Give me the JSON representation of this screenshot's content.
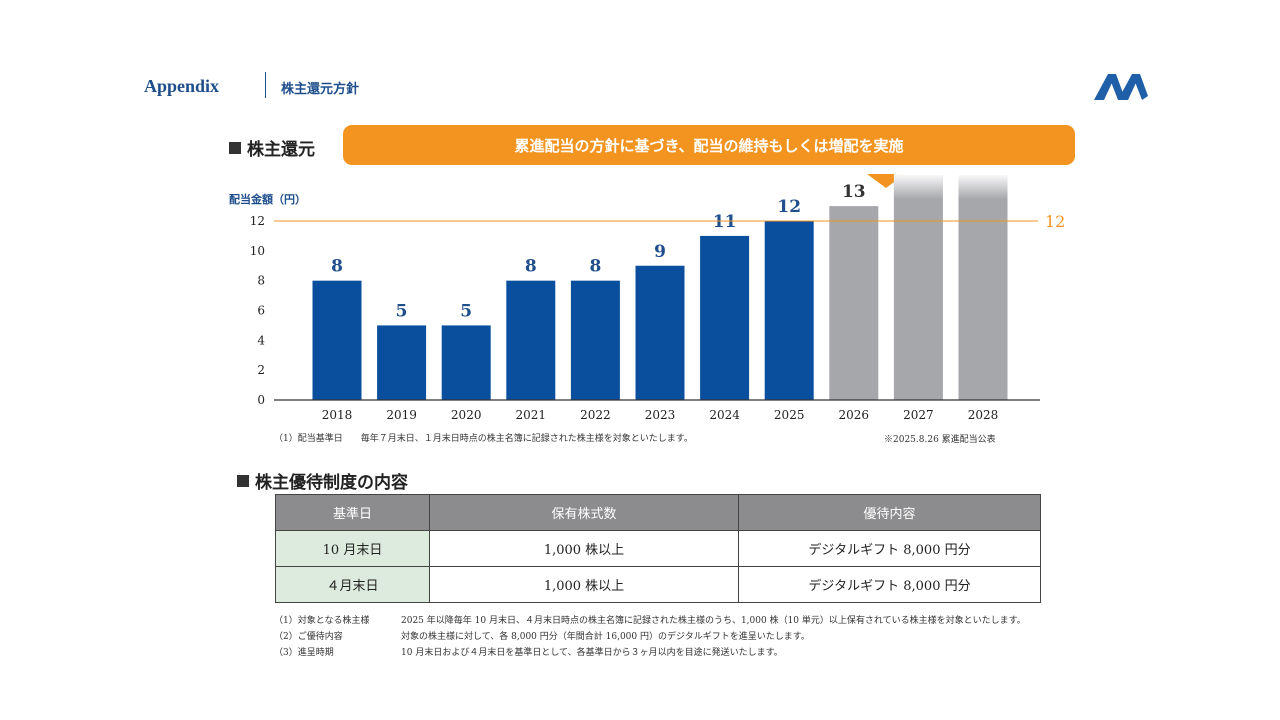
{
  "header": {
    "appendix": "Appendix",
    "subtitle": "株主還元方針"
  },
  "dividend_section": {
    "title": "株主還元",
    "banner": "累進配当の方針に基づき、配当の維持もしくは増配を実施"
  },
  "chart_data": {
    "type": "bar",
    "ylabel": "配当金額（円）",
    "categories": [
      "2018",
      "2019",
      "2020",
      "2021",
      "2022",
      "2023",
      "2024",
      "2025",
      "2026",
      "2027",
      "2028"
    ],
    "values": [
      8,
      5,
      5,
      8,
      8,
      9,
      11,
      12,
      13,
      null,
      null
    ],
    "value_labels": [
      "8",
      "5",
      "5",
      "8",
      "8",
      "9",
      "11",
      "12",
      "13",
      "",
      ""
    ],
    "bar_types": [
      "actual",
      "actual",
      "actual",
      "actual",
      "actual",
      "actual",
      "actual",
      "actual",
      "forecast",
      "future",
      "future"
    ],
    "yticks": [
      0,
      2,
      4,
      6,
      8,
      10,
      12
    ],
    "ylim": [
      0,
      12
    ],
    "reference_line": {
      "value": 12,
      "label": "12"
    },
    "colors": {
      "actual": "#0a4f9e",
      "forecast": "#a6a7ab",
      "reference": "#f39420",
      "value_label": "#1f4e8c"
    }
  },
  "chart_notes": {
    "left": "（1）配当基準日　　毎年７月末日、１月末日時点の株主名簿に記録された株主様を対象といたします。",
    "right": "※2025.8.26 累進配当公表"
  },
  "benefit_section": {
    "title": "株主優待制度の内容",
    "headers": [
      "基準日",
      "保有株式数",
      "優待内容"
    ],
    "rows": [
      [
        "10 月末日",
        "1,000 株以上",
        "デジタルギフト 8,000 円分"
      ],
      [
        "４月末日",
        "1,000 株以上",
        "デジタルギフト 8,000 円分"
      ]
    ]
  },
  "footnotes": [
    {
      "key": "（1）対象となる株主様",
      "text": "2025 年以降毎年 10 月末日、４月末日時点の株主名簿に記録された株主様のうち、1,000 株（10 単元）以上保有されている株主様を対象といたします。"
    },
    {
      "key": "（2）ご優待内容",
      "text": "対象の株主様に対して、各 8,000 円分（年間合計 16,000 円）のデジタルギフトを進呈いたします。"
    },
    {
      "key": "（3）進呈時期",
      "text": "10 月末日および４月末日を基準日として、各基準日から３ヶ月以内を目途に発送いたします。"
    }
  ],
  "logo": {
    "icon": "company-logo-icon",
    "color": "#1f5fa8"
  }
}
